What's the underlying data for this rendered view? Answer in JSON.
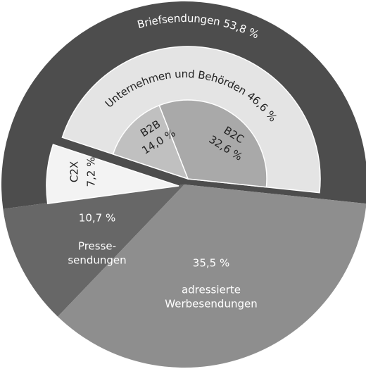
{
  "chart_data": {
    "type": "sunburst",
    "rings": [
      {
        "categories": [
          [
            "Briefsendungen"
          ],
          [
            "Presse-",
            "sendungen"
          ],
          [
            "adressierte",
            "Werbesendungen"
          ]
        ],
        "values": [
          53.8,
          10.7,
          35.5
        ],
        "value_labels": [
          "53,8 %",
          "10,7 %",
          "35,5 %"
        ],
        "colors": [
          "#4d4d4d",
          "#676767",
          "#8e8e8e"
        ]
      },
      {
        "categories": [
          [
            "Unternehmen und Behörden"
          ],
          [
            "C2X"
          ]
        ],
        "values": [
          46.6,
          7.2
        ],
        "value_labels": [
          "46,6 %",
          "7,2 %"
        ],
        "colors": [
          "#e4e4e4",
          "#f3f3f3"
        ]
      },
      {
        "categories": [
          [
            "B2C"
          ],
          [
            "B2B"
          ]
        ],
        "values": [
          32.6,
          14.0
        ],
        "value_labels": [
          "32,6 %",
          "14,0 %"
        ],
        "colors": [
          "#a9a9a9",
          "#c0c0c0"
        ]
      }
    ]
  }
}
